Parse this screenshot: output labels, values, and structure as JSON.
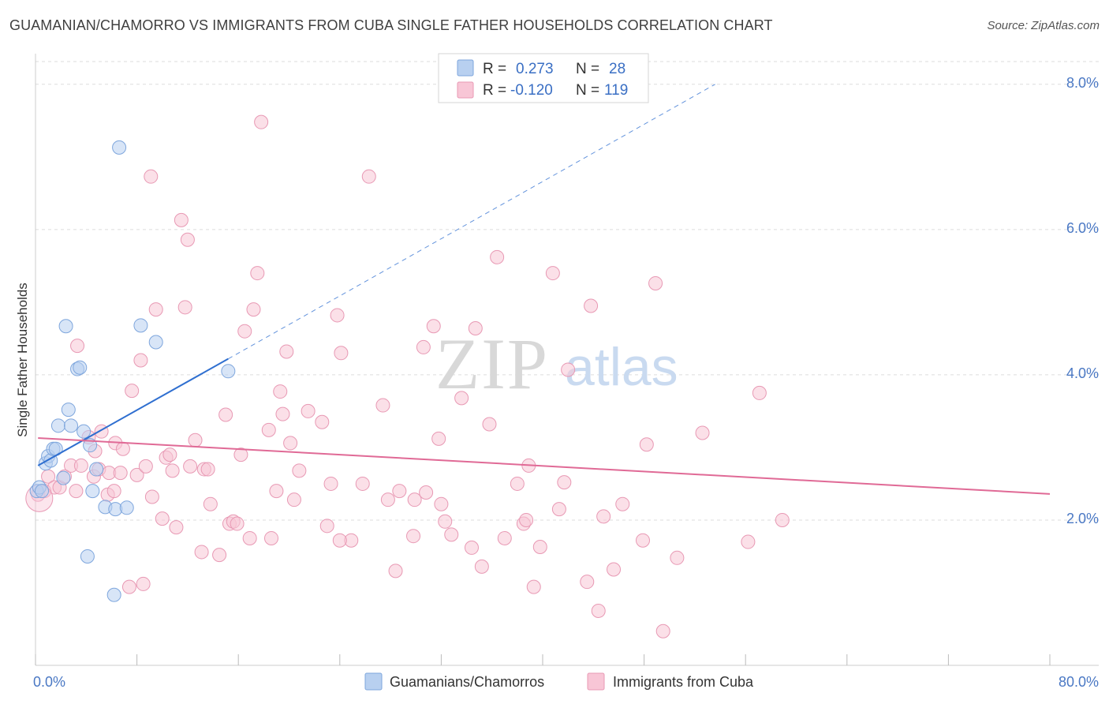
{
  "title": "GUAMANIAN/CHAMORRO VS IMMIGRANTS FROM CUBA SINGLE FATHER HOUSEHOLDS CORRELATION CHART",
  "source": "Source: ZipAtlas.com",
  "watermark": {
    "zip": "ZIP",
    "atlas": "atlas"
  },
  "colors": {
    "blue_fill": "#b8d0f0",
    "blue_stroke": "#7ea6dd",
    "blue_line": "#2f6fd0",
    "pink_fill": "#f8c6d6",
    "pink_stroke": "#e899b4",
    "pink_line": "#e06a96",
    "grid": "#dddddd",
    "tick_text": "#4a78c4"
  },
  "stats_legend": {
    "rows": [
      {
        "r_label": "R =",
        "r_value": "0.273",
        "n_label": "N =",
        "n_value": "28",
        "color": "#b8d0f0"
      },
      {
        "r_label": "R =",
        "r_value": "-0.120",
        "n_label": "N =",
        "n_value": "119",
        "color": "#f8c6d6"
      }
    ]
  },
  "chart_data": {
    "type": "scatter",
    "title": "GUAMANIAN/CHAMORRO VS IMMIGRANTS FROM CUBA SINGLE FATHER HOUSEHOLDS CORRELATION CHART",
    "xlabel": "",
    "ylabel": "Single Father Households",
    "xlim": [
      0,
      80
    ],
    "ylim": [
      0,
      8.4
    ],
    "x_tick_labels": {
      "left": "0.0%",
      "right": "80.0%"
    },
    "y_ticks": [
      {
        "value": 2,
        "label": "2.0%"
      },
      {
        "value": 4,
        "label": "4.0%"
      },
      {
        "value": 6,
        "label": "6.0%"
      },
      {
        "value": 8,
        "label": "8.0%"
      }
    ],
    "legend_position": "bottom-center",
    "series": [
      {
        "name": "Guamanians/Chamorros",
        "color": "#b8d0f0",
        "trend": {
          "x0": 0.2,
          "y0": 2.75,
          "x1": 15.2,
          "y1": 4.22,
          "dash_to_x": 53.6,
          "dash_to_y": 8.0
        },
        "points": [
          [
            0.1,
            2.4
          ],
          [
            0.3,
            2.45
          ],
          [
            0.5,
            2.4
          ],
          [
            0.8,
            2.78
          ],
          [
            1.0,
            2.88
          ],
          [
            1.2,
            2.82
          ],
          [
            1.4,
            2.98
          ],
          [
            1.6,
            2.98
          ],
          [
            1.8,
            3.3
          ],
          [
            2.2,
            2.58
          ],
          [
            2.4,
            4.67
          ],
          [
            2.6,
            3.52
          ],
          [
            2.8,
            3.3
          ],
          [
            3.3,
            4.08
          ],
          [
            3.5,
            4.1
          ],
          [
            3.8,
            3.22
          ],
          [
            4.1,
            1.5
          ],
          [
            4.3,
            3.03
          ],
          [
            4.5,
            2.4
          ],
          [
            4.8,
            2.7
          ],
          [
            5.5,
            2.18
          ],
          [
            6.2,
            0.97
          ],
          [
            6.3,
            2.15
          ],
          [
            6.6,
            7.13
          ],
          [
            7.2,
            2.17
          ],
          [
            8.3,
            4.68
          ],
          [
            9.5,
            4.45
          ],
          [
            15.2,
            4.05
          ]
        ]
      },
      {
        "name": "Immigrants from Cuba",
        "color": "#f8c6d6",
        "trend": {
          "x0": 0.2,
          "y0": 3.13,
          "x1": 80.0,
          "y1": 2.36
        },
        "points": [
          [
            0.2,
            2.35
          ],
          [
            0.7,
            2.4
          ],
          [
            1.0,
            2.6
          ],
          [
            1.5,
            2.45
          ],
          [
            1.9,
            2.45
          ],
          [
            2.3,
            2.6
          ],
          [
            2.8,
            2.75
          ],
          [
            3.2,
            2.4
          ],
          [
            3.3,
            4.4
          ],
          [
            3.6,
            2.75
          ],
          [
            4.2,
            3.14
          ],
          [
            4.6,
            2.6
          ],
          [
            4.7,
            2.95
          ],
          [
            5.0,
            2.7
          ],
          [
            5.2,
            3.22
          ],
          [
            5.7,
            2.35
          ],
          [
            5.8,
            2.65
          ],
          [
            6.2,
            2.4
          ],
          [
            6.3,
            3.06
          ],
          [
            6.7,
            2.65
          ],
          [
            6.9,
            2.98
          ],
          [
            7.4,
            1.08
          ],
          [
            7.6,
            3.78
          ],
          [
            8.0,
            2.62
          ],
          [
            8.3,
            4.2
          ],
          [
            8.5,
            1.12
          ],
          [
            8.7,
            2.74
          ],
          [
            9.1,
            6.73
          ],
          [
            9.2,
            2.32
          ],
          [
            9.5,
            4.9
          ],
          [
            10.0,
            2.02
          ],
          [
            10.3,
            2.86
          ],
          [
            10.6,
            2.9
          ],
          [
            10.8,
            2.68
          ],
          [
            11.1,
            1.9
          ],
          [
            11.5,
            6.13
          ],
          [
            11.8,
            4.93
          ],
          [
            12.0,
            5.86
          ],
          [
            12.2,
            2.74
          ],
          [
            12.6,
            3.1
          ],
          [
            13.1,
            1.56
          ],
          [
            13.3,
            2.7
          ],
          [
            13.6,
            2.7
          ],
          [
            13.8,
            2.22
          ],
          [
            14.5,
            1.52
          ],
          [
            15.0,
            3.45
          ],
          [
            15.3,
            1.95
          ],
          [
            15.6,
            1.98
          ],
          [
            15.9,
            1.95
          ],
          [
            16.2,
            2.9
          ],
          [
            16.5,
            4.6
          ],
          [
            16.9,
            1.75
          ],
          [
            17.2,
            4.9
          ],
          [
            17.5,
            5.4
          ],
          [
            17.8,
            7.48
          ],
          [
            18.4,
            3.24
          ],
          [
            18.6,
            1.75
          ],
          [
            19.0,
            2.4
          ],
          [
            19.3,
            3.77
          ],
          [
            19.5,
            3.46
          ],
          [
            19.8,
            4.32
          ],
          [
            20.1,
            3.06
          ],
          [
            20.4,
            2.28
          ],
          [
            20.8,
            2.68
          ],
          [
            21.5,
            3.5
          ],
          [
            22.6,
            3.35
          ],
          [
            23.0,
            1.92
          ],
          [
            23.3,
            2.5
          ],
          [
            23.8,
            4.82
          ],
          [
            24.1,
            4.3
          ],
          [
            24.9,
            1.72
          ],
          [
            25.8,
            2.5
          ],
          [
            26.3,
            6.73
          ],
          [
            27.4,
            3.58
          ],
          [
            27.8,
            2.28
          ],
          [
            28.4,
            1.3
          ],
          [
            28.7,
            2.4
          ],
          [
            29.8,
            1.78
          ],
          [
            29.9,
            2.28
          ],
          [
            30.6,
            4.38
          ],
          [
            30.8,
            2.38
          ],
          [
            31.4,
            4.67
          ],
          [
            31.8,
            3.12
          ],
          [
            32.0,
            2.22
          ],
          [
            32.3,
            1.98
          ],
          [
            32.8,
            1.8
          ],
          [
            33.6,
            3.68
          ],
          [
            34.4,
            1.62
          ],
          [
            34.7,
            4.64
          ],
          [
            35.2,
            1.36
          ],
          [
            35.8,
            3.32
          ],
          [
            36.4,
            5.62
          ],
          [
            37.0,
            1.75
          ],
          [
            38.0,
            2.5
          ],
          [
            38.5,
            1.95
          ],
          [
            38.7,
            2.0
          ],
          [
            38.9,
            2.75
          ],
          [
            39.3,
            1.08
          ],
          [
            39.8,
            1.63
          ],
          [
            40.8,
            5.4
          ],
          [
            41.3,
            2.15
          ],
          [
            41.7,
            2.52
          ],
          [
            42.0,
            4.07
          ],
          [
            43.5,
            1.15
          ],
          [
            43.8,
            4.95
          ],
          [
            44.4,
            0.75
          ],
          [
            44.8,
            2.05
          ],
          [
            45.6,
            1.32
          ],
          [
            46.3,
            2.22
          ],
          [
            47.9,
            1.72
          ],
          [
            48.2,
            3.04
          ],
          [
            48.9,
            5.26
          ],
          [
            49.5,
            0.47
          ],
          [
            50.6,
            1.48
          ],
          [
            52.6,
            3.2
          ],
          [
            56.2,
            1.7
          ],
          [
            57.1,
            3.75
          ],
          [
            58.9,
            2.0
          ],
          [
            24.0,
            1.72
          ]
        ]
      }
    ]
  },
  "bottom_legend": {
    "items": [
      {
        "label": "Guamanians/Chamorros",
        "color": "#b8d0f0"
      },
      {
        "label": "Immigrants from Cuba",
        "color": "#f8c6d6"
      }
    ]
  }
}
